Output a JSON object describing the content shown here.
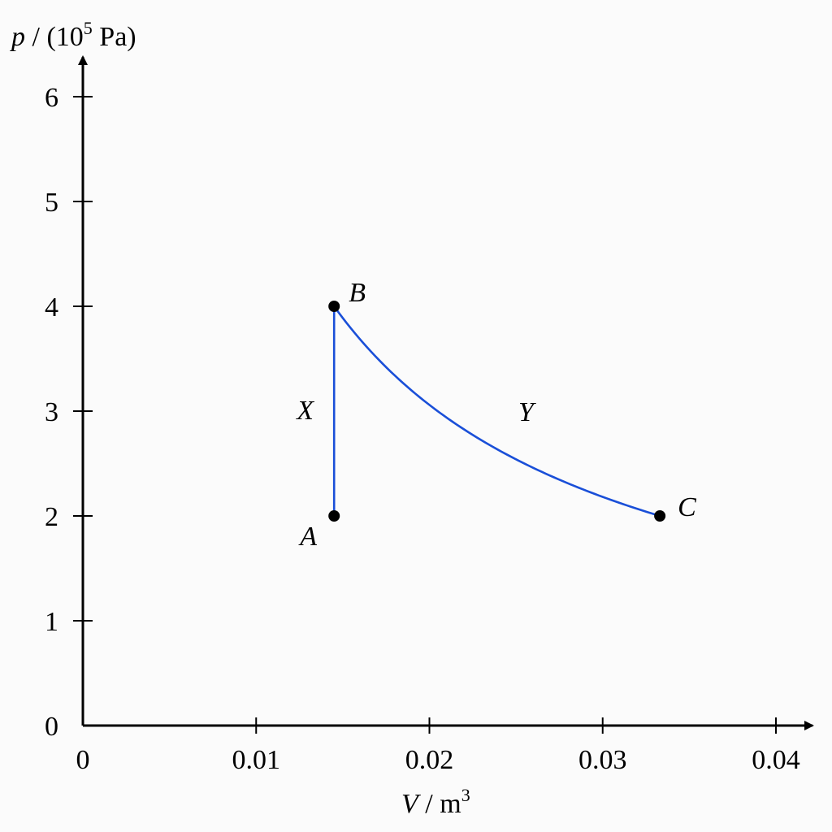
{
  "chart_data": {
    "type": "line",
    "title": "",
    "xlabel": {
      "var": "V",
      "sep": " / m",
      "unit_sup": "3"
    },
    "ylabel": {
      "var": "p",
      "pre": " / (10",
      "sup": "5",
      "post": " Pa)"
    },
    "xlim": [
      0,
      0.04
    ],
    "ylim": [
      0,
      6
    ],
    "xticks": [
      0,
      0.01,
      0.02,
      0.03,
      0.04
    ],
    "xtick_labels": [
      "0",
      "0.01",
      "0.02",
      "0.03",
      "0.04"
    ],
    "yticks": [
      0,
      1,
      2,
      3,
      4,
      5,
      6
    ],
    "ytick_labels": [
      "0",
      "1",
      "2",
      "3",
      "4",
      "5",
      "6"
    ],
    "line_color": "#1a4fd8",
    "points": [
      {
        "name": "A",
        "x": 0.0145,
        "y": 2
      },
      {
        "name": "B",
        "x": 0.0145,
        "y": 4
      },
      {
        "name": "C",
        "x": 0.0333,
        "y": 2
      }
    ],
    "processes": [
      {
        "label": "X",
        "from": "A",
        "to": "B",
        "kind": "isochoric"
      },
      {
        "label": "Y",
        "from": "B",
        "to": "C",
        "kind": "curve"
      }
    ],
    "grid": false,
    "legend": "none"
  }
}
